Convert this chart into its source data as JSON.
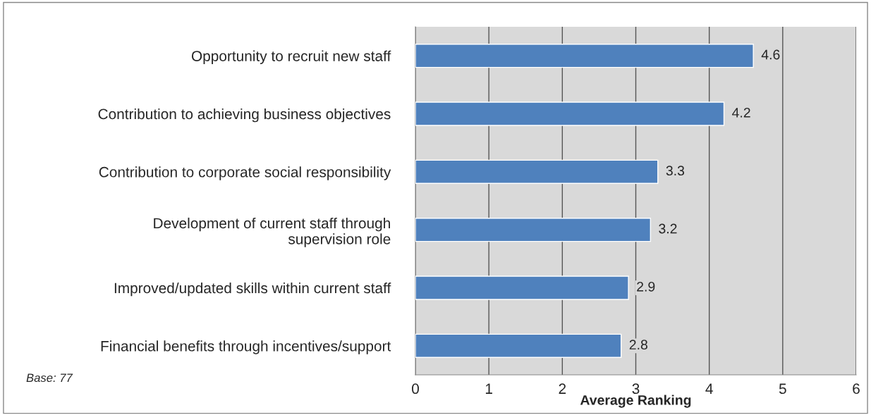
{
  "chart_data": {
    "type": "bar",
    "orientation": "horizontal",
    "categories": [
      "Opportunity to recruit new staff",
      "Contribution to achieving business objectives",
      "Contribution to corporate social responsibility",
      "Development of current staff through\nsupervision role",
      "Improved/updated skills within current staff",
      "Financial benefits through incentives/support"
    ],
    "values": [
      4.6,
      4.2,
      3.3,
      3.2,
      2.9,
      2.8
    ],
    "color": "#4f81bd",
    "data_labels": true,
    "xlim": [
      0,
      6
    ],
    "xticks": [
      0,
      1,
      2,
      3,
      4,
      5,
      6
    ],
    "grid": "x",
    "xlabel": "Average Ranking",
    "annotations": [
      "Base: 77"
    ]
  }
}
